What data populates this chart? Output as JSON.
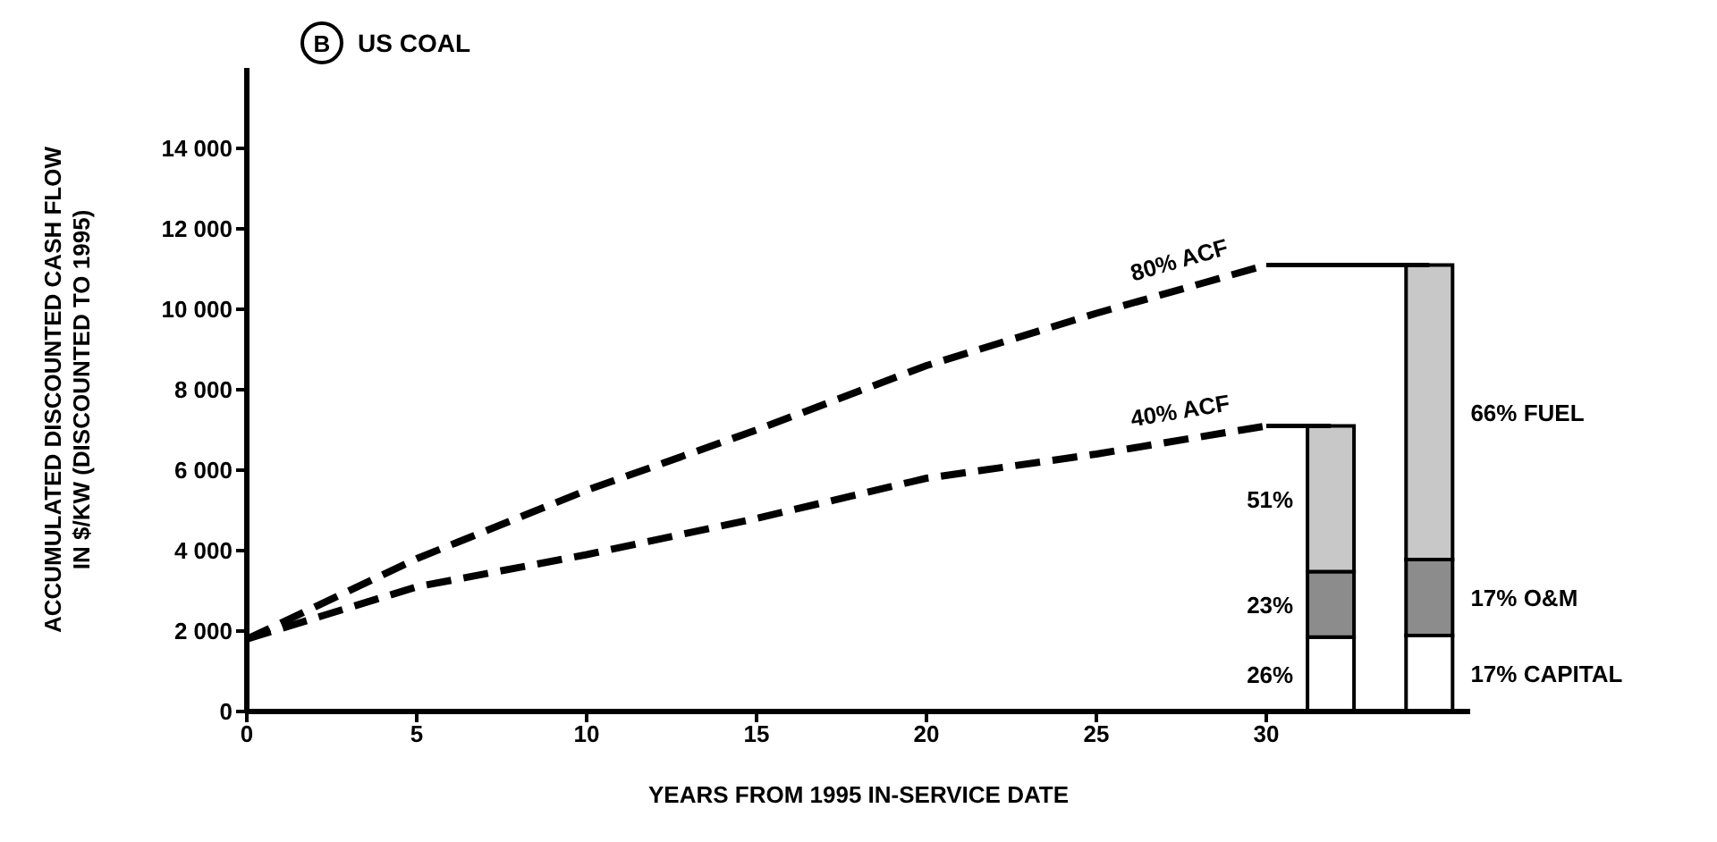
{
  "chart_data": {
    "type": "line",
    "title": "US COAL",
    "annotations": [
      "B",
      "26%",
      "23%",
      "51%",
      "17% CAPITAL",
      "17% O&M",
      "66% FUEL"
    ],
    "xlabel": "YEARS FROM 1995 IN-SERVICE DATE",
    "ylabel": "ACCUMULATED DISCOUNTED CASH FLOW\nIN $/KW (DISCOUNTED TO 1995)",
    "xlim": [
      0,
      36
    ],
    "xticks": [
      0,
      5,
      10,
      15,
      20,
      25,
      30
    ],
    "ylim": [
      0,
      16000
    ],
    "yticks": [
      0,
      {
        "value": 2000,
        "label": "2 000"
      },
      {
        "value": 4000,
        "label": "4 000"
      },
      {
        "value": 6000,
        "label": "6 000"
      },
      {
        "value": 8000,
        "label": "8 000"
      },
      {
        "value": 10000,
        "label": "10 000"
      },
      {
        "value": 12000,
        "label": "12 000"
      },
      {
        "value": 14000,
        "label": "14 000"
      }
    ],
    "grid": false,
    "legend": false,
    "marker": "none",
    "stacked": true,
    "series": [
      {
        "name": "80% ACF",
        "line_style": "dashed",
        "color": "#000000",
        "x": [
          0,
          5,
          10,
          15,
          20,
          25,
          30
        ],
        "values": [
          1800,
          3800,
          5500,
          7000,
          8600,
          9900,
          11100
        ]
      },
      {
        "name": "40% ACF",
        "line_style": "dashed",
        "color": "#000000",
        "x": [
          0,
          5,
          10,
          15,
          20,
          25,
          30
        ],
        "values": [
          1800,
          3100,
          3900,
          4800,
          5800,
          6400,
          7100
        ]
      },
      {
        "line_style": "solid",
        "color": "#000000",
        "x": [
          30,
          34.8
        ],
        "values": [
          11100,
          11100
        ]
      },
      {
        "line_style": "solid",
        "color": "#000000",
        "x": [
          30,
          31.9
        ],
        "values": [
          7100,
          7100
        ]
      },
      {
        "type": "bar",
        "color": "#ffffff",
        "x": [
          31.9,
          34.8
        ],
        "values": [
          1850,
          1890
        ]
      },
      {
        "type": "bar",
        "color": "#8c8c8c",
        "x": [
          31.9,
          34.8
        ],
        "values": [
          1630,
          1890
        ]
      },
      {
        "type": "bar",
        "color": "#c8c8c8",
        "x": [
          31.9,
          34.8
        ],
        "values": [
          3620,
          7320
        ]
      }
    ]
  }
}
